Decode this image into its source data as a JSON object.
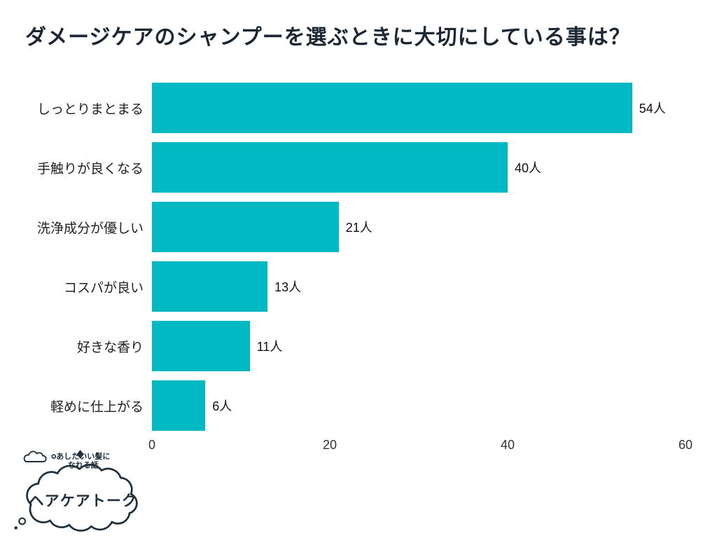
{
  "page": {
    "title": "ダメージケアのシャンプーを選ぶときに大切にしている事は？"
  },
  "chart_data": {
    "type": "bar",
    "orientation": "horizontal",
    "title": "ダメージケアのシャンプーを選ぶときに大切にしている事は？",
    "categories": [
      "しっとりまとまる",
      "手触りが良くなる",
      "洗浄成分が優しい",
      "コスパが良い",
      "好きな香り",
      "軽めに仕上がる"
    ],
    "values": [
      54,
      40,
      21,
      13,
      11,
      6
    ],
    "value_labels": [
      "54人",
      "40人",
      "21人",
      "13人",
      "11人",
      "6人"
    ],
    "unit": "人",
    "xlim": [
      0,
      60
    ],
    "x_ticks": [
      0,
      20,
      40,
      60
    ],
    "bar_color": "#00b9c3",
    "grid": false,
    "legend": false
  },
  "logo": {
    "tagline_line1": "あしたいい髪に",
    "tagline_line2": "なれる話",
    "brand": "ヘアケアトーク",
    "ink_color": "#20303c"
  }
}
